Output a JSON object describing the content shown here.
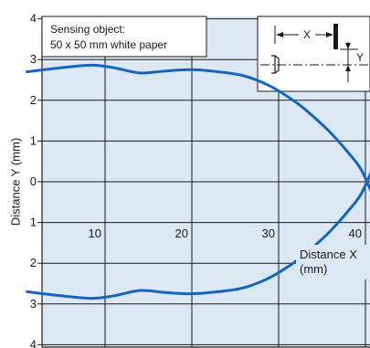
{
  "chart_data": {
    "type": "line",
    "xlabel": "Distance X (mm)",
    "xlabel_line1": "Distance X",
    "xlabel_line2": "(mm)",
    "ylabel": "Distance Y (mm)",
    "xlim": [
      0,
      41
    ],
    "ylim": [
      -4,
      4
    ],
    "x_ticks": [
      10,
      20,
      30,
      40
    ],
    "y_ticks": [
      {
        "value": 4,
        "label": "4"
      },
      {
        "value": 3,
        "label": "3"
      },
      {
        "value": 2,
        "label": "2"
      },
      {
        "value": 1,
        "label": "1"
      },
      {
        "value": 0,
        "label": "0"
      },
      {
        "value": -1,
        "label": "1"
      },
      {
        "value": -2,
        "label": "2"
      },
      {
        "value": -3,
        "label": "3"
      },
      {
        "value": -4,
        "label": "4"
      }
    ],
    "grid": true,
    "annotation_line1": "Sensing object:",
    "annotation_line2": "50 x 50 mm white paper",
    "inset_x_label": "X",
    "inset_y_label": "Y",
    "series": [
      {
        "x": [
          1,
          5,
          8.5,
          11,
          14,
          17,
          20,
          23,
          26,
          29,
          32,
          34,
          36,
          38,
          39.5,
          41
        ],
        "y": [
          2.7,
          2.8,
          2.86,
          2.8,
          2.67,
          2.72,
          2.75,
          2.7,
          2.6,
          2.35,
          1.95,
          1.6,
          1.2,
          0.72,
          0.3,
          -0.4
        ]
      },
      {
        "x": [
          1,
          5,
          8.5,
          11,
          14,
          17,
          20,
          23,
          26,
          29,
          32,
          34,
          36,
          38,
          39.5,
          41
        ],
        "y": [
          -2.7,
          -2.8,
          -2.86,
          -2.8,
          -2.67,
          -2.72,
          -2.75,
          -2.7,
          -2.6,
          -2.35,
          -1.95,
          -1.6,
          -1.2,
          -0.72,
          -0.3,
          0.4
        ]
      }
    ],
    "colors": {
      "background": "#dde8f5",
      "line": "#1565c0",
      "grid": "#1a1a1a",
      "axis": "#1a1a1a"
    }
  }
}
